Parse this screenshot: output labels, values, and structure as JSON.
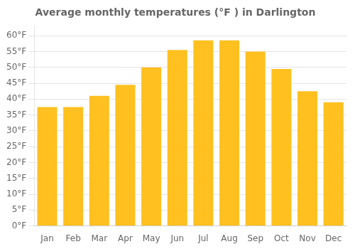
{
  "chart_data": {
    "type": "bar",
    "title": "Average monthly temperatures (°F ) in Darlington",
    "categories": [
      "Jan",
      "Feb",
      "Mar",
      "Apr",
      "May",
      "Jun",
      "Jul",
      "Aug",
      "Sep",
      "Oct",
      "Nov",
      "Dec"
    ],
    "values": [
      37.5,
      37.5,
      41,
      44.5,
      50,
      55.5,
      58.5,
      58.5,
      55,
      49.5,
      42.5,
      39
    ],
    "color": "#FFC020",
    "ylim": [
      0,
      63
    ],
    "yticks": [
      {
        "value": 0,
        "label": "0°F"
      },
      {
        "value": 5,
        "label": "5°F"
      },
      {
        "value": 10,
        "label": "10°F"
      },
      {
        "value": 15,
        "label": "15°F"
      },
      {
        "value": 20,
        "label": "20°F"
      },
      {
        "value": 25,
        "label": "25°F"
      },
      {
        "value": 30,
        "label": "30°F"
      },
      {
        "value": 35,
        "label": "35°F"
      },
      {
        "value": 40,
        "label": "40°F"
      },
      {
        "value": 45,
        "label": "45°F"
      },
      {
        "value": 50,
        "label": "50°F"
      },
      {
        "value": 55,
        "label": "55°F"
      },
      {
        "value": 60,
        "label": "60°F"
      }
    ],
    "grid": true
  }
}
